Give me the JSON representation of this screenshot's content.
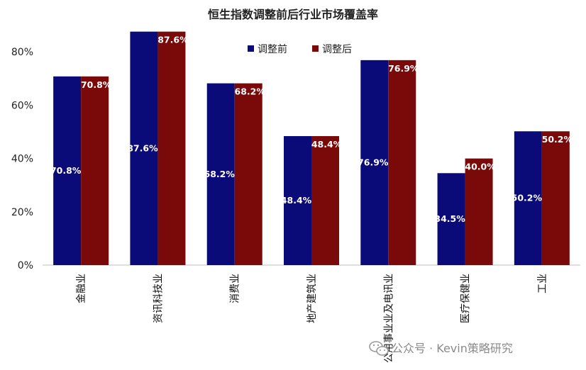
{
  "chart_data": {
    "type": "bar",
    "title": "恒生指数调整前后行业市场覆盖率",
    "categories": [
      "金融业",
      "资讯科技业",
      "消费业",
      "地产建筑业",
      "公用事业业及电讯业",
      "医疗保健业",
      "工业"
    ],
    "series": [
      {
        "name": "调整前",
        "color": "#0a0a78",
        "values": [
          70.8,
          87.6,
          68.2,
          48.4,
          76.9,
          34.5,
          50.2
        ],
        "labels": [
          "70.8%",
          "87.6%",
          "68.2%",
          "48.4%",
          "76.9%",
          "34.5%",
          "50.2%"
        ]
      },
      {
        "name": "调整后",
        "color": "#7a0a0a",
        "values": [
          70.8,
          87.6,
          68.2,
          48.4,
          76.9,
          40.0,
          50.2
        ],
        "labels": [
          "70.8%",
          "87.6%",
          "68.2%",
          "48.4%",
          "76.9%",
          "40.0%",
          "50.2%"
        ]
      }
    ],
    "ylim": [
      0,
      90
    ],
    "yticks": [
      0,
      20,
      40,
      60,
      80
    ],
    "ytick_labels": [
      "0%",
      "20%",
      "40%",
      "60%",
      "80%"
    ],
    "grid": false,
    "legend": "top-center"
  },
  "watermark": {
    "text": "公众号 · Kevin策略研究",
    "icon": "wechat-icon"
  }
}
